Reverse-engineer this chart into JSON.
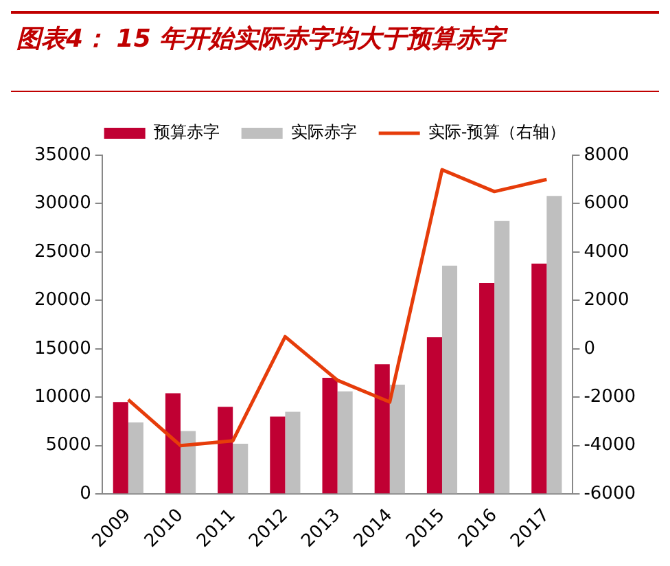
{
  "chart_data": {
    "type": "bar",
    "title": "图表4： 15 年开始实际赤字均大于预算赤字",
    "categories": [
      "2009",
      "2010",
      "2011",
      "2012",
      "2013",
      "2014",
      "2015",
      "2016",
      "2017"
    ],
    "series": [
      {
        "name": "预算赤字",
        "color": "#c00033",
        "values": [
          9500,
          10400,
          9000,
          8000,
          12000,
          13400,
          16200,
          21800,
          23800
        ]
      },
      {
        "name": "实际赤字",
        "color": "#bfbfbf",
        "values": [
          7400,
          6500,
          5200,
          8500,
          10600,
          11300,
          23600,
          28200,
          30800
        ]
      },
      {
        "name": "实际-预算（右轴）",
        "type": "line",
        "axis": "y2",
        "color": "#e63c0a",
        "values": [
          -2100,
          -4000,
          -3800,
          500,
          -1300,
          -2200,
          7400,
          6500,
          7000
        ]
      }
    ],
    "ylim": [
      0,
      35000
    ],
    "yticks": [
      0,
      5000,
      10000,
      15000,
      20000,
      25000,
      30000,
      35000
    ],
    "y2lim": [
      -6000,
      8000
    ],
    "y2ticks": [
      -6000,
      -4000,
      -2000,
      0,
      2000,
      4000,
      6000,
      8000
    ],
    "legend": "top",
    "grid": false
  }
}
